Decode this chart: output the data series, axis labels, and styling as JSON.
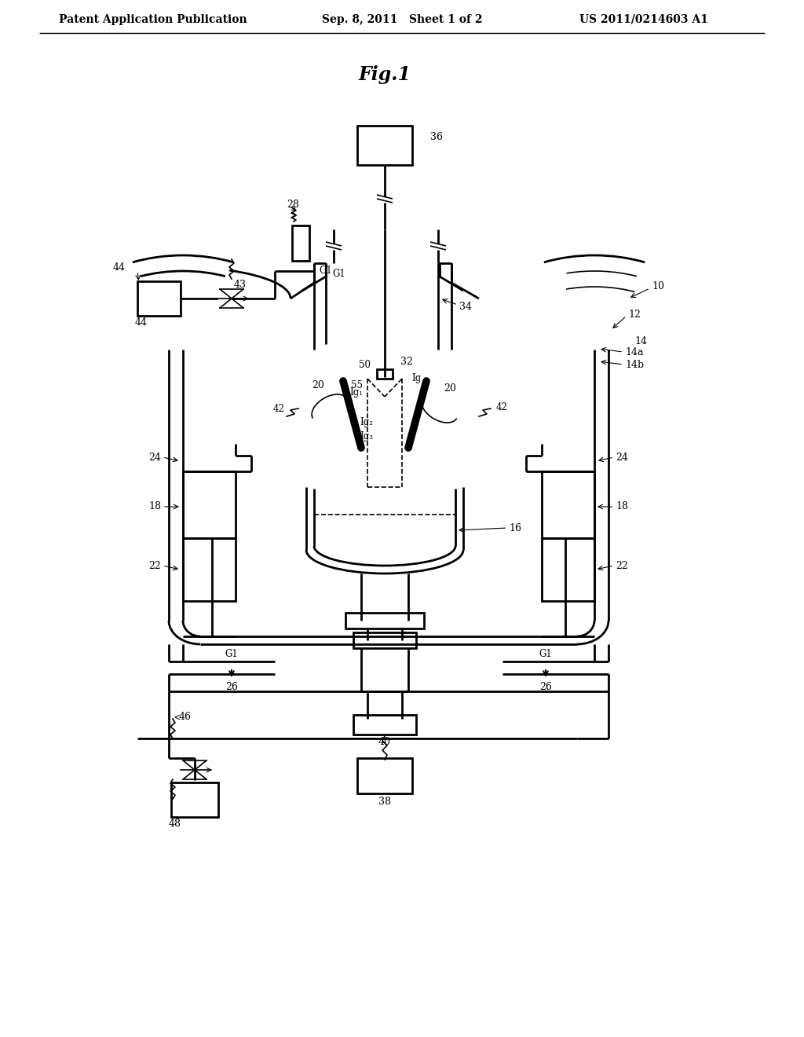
{
  "header_left": "Patent Application Publication",
  "header_center": "Sep. 8, 2011   Sheet 1 of 2",
  "header_right": "US 2011/0214603 A1",
  "title": "Fig.1",
  "bg_color": "#ffffff",
  "line_color": "#000000"
}
